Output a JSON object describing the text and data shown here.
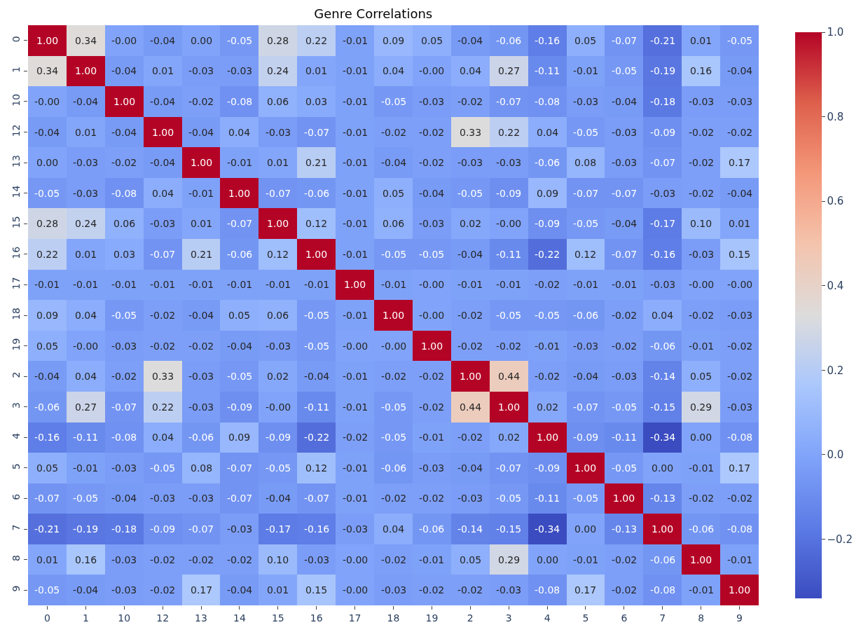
{
  "chart_data": {
    "type": "heatmap",
    "title": "Genre Correlations",
    "categories": [
      "0",
      "1",
      "10",
      "12",
      "13",
      "14",
      "15",
      "16",
      "17",
      "18",
      "19",
      "2",
      "3",
      "4",
      "5",
      "6",
      "7",
      "8",
      "9"
    ],
    "y_categories": [
      "0",
      "1",
      "10",
      "12",
      "13",
      "14",
      "15",
      "16",
      "17",
      "18",
      "19",
      "2",
      "3",
      "4",
      "5",
      "6",
      "7",
      "8",
      "9"
    ],
    "cells": [
      [
        1.0,
        0.34,
        -0.0,
        -0.04,
        0.0,
        -0.05,
        0.28,
        0.22,
        -0.01,
        0.09,
        0.05,
        -0.04,
        -0.06,
        -0.16,
        0.05,
        -0.07,
        -0.21,
        0.01,
        -0.05
      ],
      [
        0.34,
        1.0,
        -0.04,
        0.01,
        -0.03,
        -0.03,
        0.24,
        0.01,
        -0.01,
        0.04,
        -0.0,
        0.04,
        0.27,
        -0.11,
        -0.01,
        -0.05,
        -0.19,
        0.16,
        -0.04
      ],
      [
        -0.0,
        -0.04,
        1.0,
        -0.04,
        -0.02,
        -0.08,
        0.06,
        0.03,
        -0.01,
        -0.05,
        -0.03,
        -0.02,
        -0.07,
        -0.08,
        -0.03,
        -0.04,
        -0.18,
        -0.03,
        -0.03
      ],
      [
        -0.04,
        0.01,
        -0.04,
        1.0,
        -0.04,
        0.04,
        -0.03,
        -0.07,
        -0.01,
        -0.02,
        -0.02,
        0.33,
        0.22,
        0.04,
        -0.05,
        -0.03,
        -0.09,
        -0.02,
        -0.02
      ],
      [
        0.0,
        -0.03,
        -0.02,
        -0.04,
        1.0,
        -0.01,
        0.01,
        0.21,
        -0.01,
        -0.04,
        -0.02,
        -0.03,
        -0.03,
        -0.06,
        0.08,
        -0.03,
        -0.07,
        -0.02,
        0.17
      ],
      [
        -0.05,
        -0.03,
        -0.08,
        0.04,
        -0.01,
        1.0,
        -0.07,
        -0.06,
        -0.01,
        0.05,
        -0.04,
        -0.05,
        -0.09,
        0.09,
        -0.07,
        -0.07,
        -0.03,
        -0.02,
        -0.04
      ],
      [
        0.28,
        0.24,
        0.06,
        -0.03,
        0.01,
        -0.07,
        1.0,
        0.12,
        -0.01,
        0.06,
        -0.03,
        0.02,
        -0.0,
        -0.09,
        -0.05,
        -0.04,
        -0.17,
        0.1,
        0.01
      ],
      [
        0.22,
        0.01,
        0.03,
        -0.07,
        0.21,
        -0.06,
        0.12,
        1.0,
        -0.01,
        -0.05,
        -0.05,
        -0.04,
        -0.11,
        -0.22,
        0.12,
        -0.07,
        -0.16,
        -0.03,
        0.15
      ],
      [
        -0.01,
        -0.01,
        -0.01,
        -0.01,
        -0.01,
        -0.01,
        -0.01,
        -0.01,
        1.0,
        -0.01,
        -0.0,
        -0.01,
        -0.01,
        -0.02,
        -0.01,
        -0.01,
        -0.03,
        -0.0,
        -0.0
      ],
      [
        0.09,
        0.04,
        -0.05,
        -0.02,
        -0.04,
        0.05,
        0.06,
        -0.05,
        -0.01,
        1.0,
        -0.0,
        -0.02,
        -0.05,
        -0.05,
        -0.06,
        -0.02,
        0.04,
        -0.02,
        -0.03
      ],
      [
        0.05,
        -0.0,
        -0.03,
        -0.02,
        -0.02,
        -0.04,
        -0.03,
        -0.05,
        -0.0,
        -0.0,
        1.0,
        -0.02,
        -0.02,
        -0.01,
        -0.03,
        -0.02,
        -0.06,
        -0.01,
        -0.02
      ],
      [
        -0.04,
        0.04,
        -0.02,
        0.33,
        -0.03,
        -0.05,
        0.02,
        -0.04,
        -0.01,
        -0.02,
        -0.02,
        1.0,
        0.44,
        -0.02,
        -0.04,
        -0.03,
        -0.14,
        0.05,
        -0.02
      ],
      [
        -0.06,
        0.27,
        -0.07,
        0.22,
        -0.03,
        -0.09,
        -0.0,
        -0.11,
        -0.01,
        -0.05,
        -0.02,
        0.44,
        1.0,
        0.02,
        -0.07,
        -0.05,
        -0.15,
        0.29,
        -0.03
      ],
      [
        -0.16,
        -0.11,
        -0.08,
        0.04,
        -0.06,
        0.09,
        -0.09,
        -0.22,
        -0.02,
        -0.05,
        -0.01,
        -0.02,
        0.02,
        1.0,
        -0.09,
        -0.11,
        -0.34,
        0.0,
        -0.08
      ],
      [
        0.05,
        -0.01,
        -0.03,
        -0.05,
        0.08,
        -0.07,
        -0.05,
        0.12,
        -0.01,
        -0.06,
        -0.03,
        -0.04,
        -0.07,
        -0.09,
        1.0,
        -0.05,
        0.0,
        -0.01,
        0.17
      ],
      [
        -0.07,
        -0.05,
        -0.04,
        -0.03,
        -0.03,
        -0.07,
        -0.04,
        -0.07,
        -0.01,
        -0.02,
        -0.02,
        -0.03,
        -0.05,
        -0.11,
        -0.05,
        1.0,
        -0.13,
        -0.02,
        -0.02
      ],
      [
        -0.21,
        -0.19,
        -0.18,
        -0.09,
        -0.07,
        -0.03,
        -0.17,
        -0.16,
        -0.03,
        0.04,
        -0.06,
        -0.14,
        -0.15,
        -0.34,
        0.0,
        -0.13,
        1.0,
        -0.06,
        -0.08
      ],
      [
        0.01,
        0.16,
        -0.03,
        -0.02,
        -0.02,
        -0.02,
        0.1,
        -0.03,
        -0.0,
        -0.02,
        -0.01,
        0.05,
        0.29,
        0.0,
        -0.01,
        -0.02,
        -0.06,
        1.0,
        -0.01
      ],
      [
        -0.05,
        -0.04,
        -0.03,
        -0.02,
        0.17,
        -0.04,
        0.01,
        0.15,
        -0.0,
        -0.03,
        -0.02,
        -0.02,
        -0.03,
        -0.08,
        0.17,
        -0.02,
        -0.08,
        -0.01,
        1.0
      ]
    ],
    "cell_labels": [
      [
        "1.00",
        "0.34",
        "-0.00",
        "-0.04",
        "0.00",
        "-0.05",
        "0.28",
        "0.22",
        "-0.01",
        "0.09",
        "0.05",
        "-0.04",
        "-0.06",
        "-0.16",
        "0.05",
        "-0.07",
        "-0.21",
        "0.01",
        "-0.05"
      ],
      [
        "0.34",
        "1.00",
        "-0.04",
        "0.01",
        "-0.03",
        "-0.03",
        "0.24",
        "0.01",
        "-0.01",
        "0.04",
        "-0.00",
        "0.04",
        "0.27",
        "-0.11",
        "-0.01",
        "-0.05",
        "-0.19",
        "0.16",
        "-0.04"
      ],
      [
        "-0.00",
        "-0.04",
        "1.00",
        "-0.04",
        "-0.02",
        "-0.08",
        "0.06",
        "0.03",
        "-0.01",
        "-0.05",
        "-0.03",
        "-0.02",
        "-0.07",
        "-0.08",
        "-0.03",
        "-0.04",
        "-0.18",
        "-0.03",
        "-0.03"
      ],
      [
        "-0.04",
        "0.01",
        "-0.04",
        "1.00",
        "-0.04",
        "0.04",
        "-0.03",
        "-0.07",
        "-0.01",
        "-0.02",
        "-0.02",
        "0.33",
        "0.22",
        "0.04",
        "-0.05",
        "-0.03",
        "-0.09",
        "-0.02",
        "-0.02"
      ],
      [
        "0.00",
        "-0.03",
        "-0.02",
        "-0.04",
        "1.00",
        "-0.01",
        "0.01",
        "0.21",
        "-0.01",
        "-0.04",
        "-0.02",
        "-0.03",
        "-0.03",
        "-0.06",
        "0.08",
        "-0.03",
        "-0.07",
        "-0.02",
        "0.17"
      ],
      [
        "-0.05",
        "-0.03",
        "-0.08",
        "0.04",
        "-0.01",
        "1.00",
        "-0.07",
        "-0.06",
        "-0.01",
        "0.05",
        "-0.04",
        "-0.05",
        "-0.09",
        "0.09",
        "-0.07",
        "-0.07",
        "-0.03",
        "-0.02",
        "-0.04"
      ],
      [
        "0.28",
        "0.24",
        "0.06",
        "-0.03",
        "0.01",
        "-0.07",
        "1.00",
        "0.12",
        "-0.01",
        "0.06",
        "-0.03",
        "0.02",
        "-0.00",
        "-0.09",
        "-0.05",
        "-0.04",
        "-0.17",
        "0.10",
        "0.01"
      ],
      [
        "0.22",
        "0.01",
        "0.03",
        "-0.07",
        "0.21",
        "-0.06",
        "0.12",
        "1.00",
        "-0.01",
        "-0.05",
        "-0.05",
        "-0.04",
        "-0.11",
        "-0.22",
        "0.12",
        "-0.07",
        "-0.16",
        "-0.03",
        "0.15"
      ],
      [
        "-0.01",
        "-0.01",
        "-0.01",
        "-0.01",
        "-0.01",
        "-0.01",
        "-0.01",
        "-0.01",
        "1.00",
        "-0.01",
        "-0.00",
        "-0.01",
        "-0.01",
        "-0.02",
        "-0.01",
        "-0.01",
        "-0.03",
        "-0.00",
        "-0.00"
      ],
      [
        "0.09",
        "0.04",
        "-0.05",
        "-0.02",
        "-0.04",
        "0.05",
        "0.06",
        "-0.05",
        "-0.01",
        "1.00",
        "-0.00",
        "-0.02",
        "-0.05",
        "-0.05",
        "-0.06",
        "-0.02",
        "0.04",
        "-0.02",
        "-0.03"
      ],
      [
        "0.05",
        "-0.00",
        "-0.03",
        "-0.02",
        "-0.02",
        "-0.04",
        "-0.03",
        "-0.05",
        "-0.00",
        "-0.00",
        "1.00",
        "-0.02",
        "-0.02",
        "-0.01",
        "-0.03",
        "-0.02",
        "-0.06",
        "-0.01",
        "-0.02"
      ],
      [
        "-0.04",
        "0.04",
        "-0.02",
        "0.33",
        "-0.03",
        "-0.05",
        "0.02",
        "-0.04",
        "-0.01",
        "-0.02",
        "-0.02",
        "1.00",
        "0.44",
        "-0.02",
        "-0.04",
        "-0.03",
        "-0.14",
        "0.05",
        "-0.02"
      ],
      [
        "-0.06",
        "0.27",
        "-0.07",
        "0.22",
        "-0.03",
        "-0.09",
        "-0.00",
        "-0.11",
        "-0.01",
        "-0.05",
        "-0.02",
        "0.44",
        "1.00",
        "0.02",
        "-0.07",
        "-0.05",
        "-0.15",
        "0.29",
        "-0.03"
      ],
      [
        "-0.16",
        "-0.11",
        "-0.08",
        "0.04",
        "-0.06",
        "0.09",
        "-0.09",
        "-0.22",
        "-0.02",
        "-0.05",
        "-0.01",
        "-0.02",
        "0.02",
        "1.00",
        "-0.09",
        "-0.11",
        "-0.34",
        "0.00",
        "-0.08"
      ],
      [
        "0.05",
        "-0.01",
        "-0.03",
        "-0.05",
        "0.08",
        "-0.07",
        "-0.05",
        "0.12",
        "-0.01",
        "-0.06",
        "-0.03",
        "-0.04",
        "-0.07",
        "-0.09",
        "1.00",
        "-0.05",
        "0.00",
        "-0.01",
        "0.17"
      ],
      [
        "-0.07",
        "-0.05",
        "-0.04",
        "-0.03",
        "-0.03",
        "-0.07",
        "-0.04",
        "-0.07",
        "-0.01",
        "-0.02",
        "-0.02",
        "-0.03",
        "-0.05",
        "-0.11",
        "-0.05",
        "1.00",
        "-0.13",
        "-0.02",
        "-0.02"
      ],
      [
        "-0.21",
        "-0.19",
        "-0.18",
        "-0.09",
        "-0.07",
        "-0.03",
        "-0.17",
        "-0.16",
        "-0.03",
        "0.04",
        "-0.06",
        "-0.14",
        "-0.15",
        "-0.34",
        "0.00",
        "-0.13",
        "1.00",
        "-0.06",
        "-0.08"
      ],
      [
        "0.01",
        "0.16",
        "-0.03",
        "-0.02",
        "-0.02",
        "-0.02",
        "0.10",
        "-0.03",
        "-0.00",
        "-0.02",
        "-0.01",
        "0.05",
        "0.29",
        "0.00",
        "-0.01",
        "-0.02",
        "-0.06",
        "1.00",
        "-0.01"
      ],
      [
        "-0.05",
        "-0.04",
        "-0.03",
        "-0.02",
        "0.17",
        "-0.04",
        "0.01",
        "0.15",
        "-0.00",
        "-0.03",
        "-0.02",
        "-0.02",
        "-0.03",
        "-0.08",
        "0.17",
        "-0.02",
        "-0.08",
        "-0.01",
        "1.00"
      ]
    ],
    "clim": [
      -0.34,
      1.0
    ],
    "cticks": [
      {
        "value": -0.2,
        "label": "−0.2"
      },
      {
        "value": 0,
        "label": "0.0"
      },
      {
        "value": 0.2,
        "label": "0.2"
      },
      {
        "value": 0.4,
        "label": "0.4"
      },
      {
        "value": 0.6,
        "label": "0.6"
      },
      {
        "value": 0.8,
        "label": "0.8"
      },
      {
        "value": 1.0,
        "label": "1.0"
      }
    ]
  }
}
